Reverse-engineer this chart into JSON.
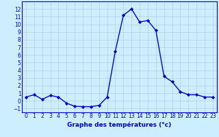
{
  "x": [
    0,
    1,
    2,
    3,
    4,
    5,
    6,
    7,
    8,
    9,
    10,
    11,
    12,
    13,
    14,
    15,
    16,
    17,
    18,
    19,
    20,
    21,
    22,
    23
  ],
  "y": [
    0.5,
    0.8,
    0.2,
    0.7,
    0.5,
    -0.3,
    -0.7,
    -0.75,
    -0.75,
    -0.6,
    0.5,
    6.5,
    11.2,
    12.0,
    10.3,
    10.5,
    9.2,
    3.2,
    2.5,
    1.2,
    0.8,
    0.8,
    0.5,
    0.5
  ],
  "xlabel": "Graphe des températures (°c)",
  "ylim": [
    -1.5,
    13.0
  ],
  "xlim": [
    -0.5,
    23.5
  ],
  "bg_color": "#cceeff",
  "line_color": "#0000cc",
  "grid_color": "#aabbcc",
  "marker": "D",
  "marker_size": 2.2,
  "line_width": 1.0,
  "yticks": [
    -1,
    0,
    1,
    2,
    3,
    4,
    5,
    6,
    7,
    8,
    9,
    10,
    11,
    12
  ],
  "xticks": [
    0,
    1,
    2,
    3,
    4,
    5,
    6,
    7,
    8,
    9,
    10,
    11,
    12,
    13,
    14,
    15,
    16,
    17,
    18,
    19,
    20,
    21,
    22,
    23
  ],
  "xlabel_fontsize": 6.5,
  "tick_fontsize": 5.5,
  "border_color": "#0000cc"
}
